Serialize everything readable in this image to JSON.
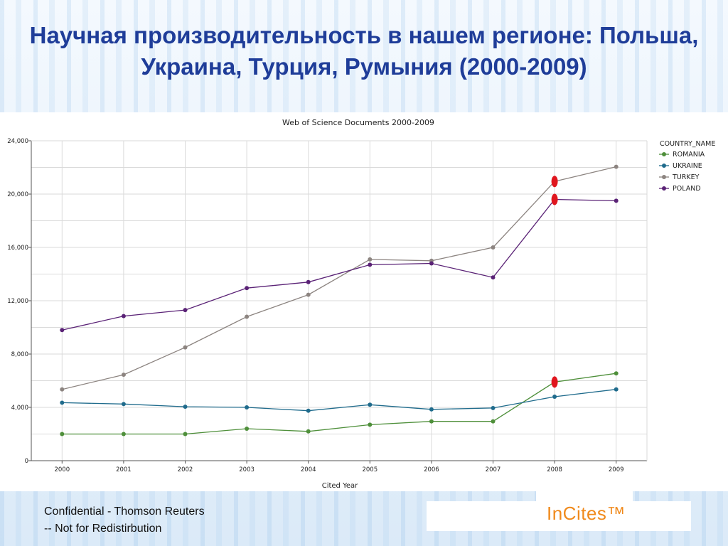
{
  "slide": {
    "title": "Научная производительность в нашем регионе: Польша, Украина, Турция, Румыния (2000-2009)",
    "footer_note": "Confidential - Thomson Reuters -- Not for Redistirbution",
    "logo": "InCites™"
  },
  "chart_data": {
    "type": "line",
    "title": "Web of Science Documents 2000-2009",
    "xlabel": "Cited Year",
    "ylabel": "",
    "x": [
      "2000",
      "2001",
      "2002",
      "2003",
      "2004",
      "2005",
      "2006",
      "2007",
      "2008",
      "2009"
    ],
    "ylim": [
      0,
      24000
    ],
    "yticks": [
      0,
      4000,
      8000,
      12000,
      16000,
      20000,
      24000
    ],
    "ytick_labels": [
      "0",
      "4,000",
      "8,000",
      "12,000",
      "16,000",
      "20,000",
      "24,000"
    ],
    "grid": true,
    "legend_title": "COUNTRY_NAME",
    "legend_position": "right",
    "series": [
      {
        "name": "ROMANIA",
        "color": "#4e8f3a",
        "values": [
          2000,
          2000,
          2000,
          2400,
          2200,
          2700,
          2950,
          2950,
          5900,
          6550
        ]
      },
      {
        "name": "UKRAINE",
        "color": "#1f6b8c",
        "values": [
          4350,
          4250,
          4050,
          4000,
          3750,
          4200,
          3850,
          3950,
          4800,
          5350
        ]
      },
      {
        "name": "TURKEY",
        "color": "#8c8480",
        "values": [
          5350,
          6450,
          8500,
          10800,
          12450,
          15100,
          15000,
          16000,
          20950,
          22050
        ]
      },
      {
        "name": "POLAND",
        "color": "#5a2276",
        "values": [
          9800,
          10850,
          11300,
          12950,
          13400,
          14700,
          14800,
          13750,
          19600,
          19500
        ]
      }
    ],
    "highlight_color": "#e0161e",
    "highlights": [
      {
        "series": "TURKEY",
        "x": "2008"
      },
      {
        "series": "POLAND",
        "x": "2008"
      },
      {
        "series": "ROMANIA",
        "x": "2008"
      }
    ]
  }
}
